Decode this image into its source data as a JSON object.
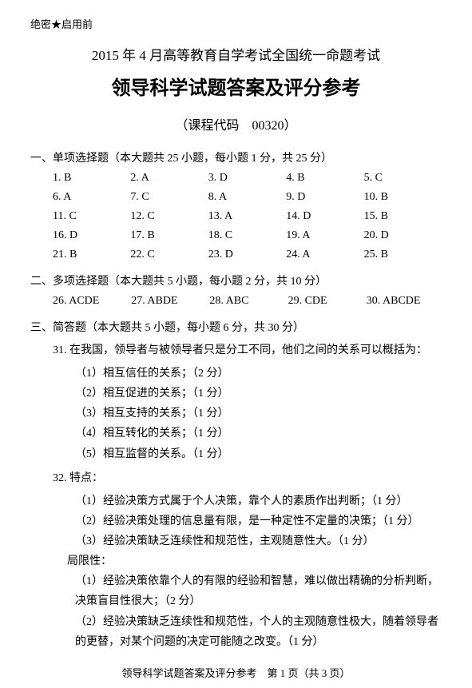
{
  "header_label": "绝密★启用前",
  "title1": "2015 年 4 月高等教育自学考试全国统一命题考试",
  "title2": "领导科学试题答案及评分参考",
  "course_code": "（课程代码　00320）",
  "section1_heading": "一、单项选择题（本大题共 25 小题，每小题 1 分，共 25 分）",
  "single_answers": [
    "1. B",
    "2. A",
    "3. D",
    "4. B",
    "5. C",
    "6. A",
    "7. C",
    "8. A",
    "9. D",
    "10. B",
    "11. C",
    "12. C",
    "13. A",
    "14. D",
    "15. B",
    "16. D",
    "17. B",
    "18. C",
    "19. A",
    "20. D",
    "21. B",
    "22. C",
    "23. D",
    "24. A",
    "25. B"
  ],
  "section2_heading": "二、多项选择题（本大题共 5 小题，每小题 2 分，共 10 分）",
  "multi_answers": [
    "26. ACDE",
    "27. ABDE",
    "28. ABC",
    "29. CDE",
    "30. ABCDE"
  ],
  "section3_heading": "三、简答题（本大题共 5 小题，每小题 6 分，共 30 分）",
  "q31_stem": "31. 在我国，领导者与被领导者只是分工不同，他们之间的关系可以概括为：",
  "q31_items": [
    "（1）相互信任的关系；（2 分）",
    "（2）相互促进的关系；（1 分）",
    "（3）相互支持的关系；（1 分）",
    "（4）相互转化的关系；（1 分）",
    "（5）相互监督的关系。（1 分）"
  ],
  "q32_stem": "32. 特点：",
  "q32_features": [
    "（1）经验决策方式属于个人决策，靠个人的素质作出判断；（1 分）",
    "（2）经验决策处理的信息量有限，是一种定性不定量的决策；（1 分）",
    "（3）经验决策缺乏连续性和规范性，主观随意性大。（1 分）"
  ],
  "q32_limit_label": "局限性：",
  "q32_limits": [
    "（1）经验决策依靠个人的有限的经验和智慧，难以做出精确的分析判断，决策盲目性很大；（2 分）",
    "（2）经验决策缺乏连续性和规范性，个人的主观随意性极大，随着领导者的更替，对某个问题的决定可能随之改变。（1 分）"
  ],
  "footer": "领导科学试题答案及评分参考　第 1 页（共 3 页）"
}
